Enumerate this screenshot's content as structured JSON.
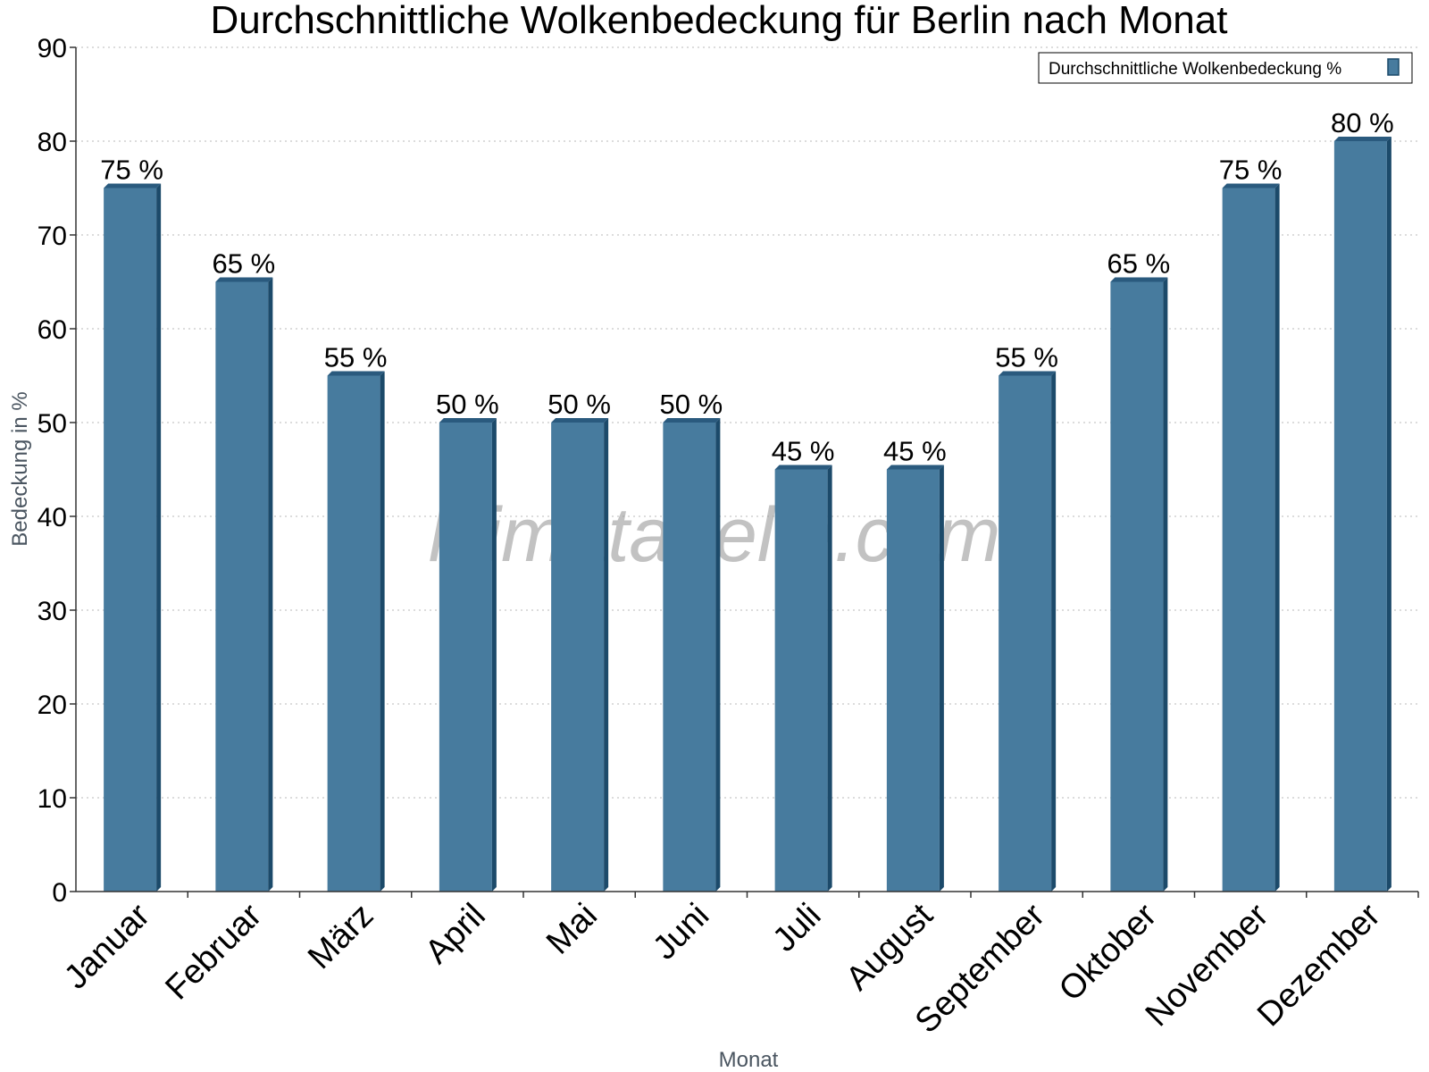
{
  "chart_data": {
    "type": "bar",
    "title": "Durchschnittliche Wolkenbedeckung für Berlin nach Monat",
    "xlabel": "Monat",
    "ylabel": "Bedeckung in %",
    "categories": [
      "Januar",
      "Februar",
      "März",
      "April",
      "Mai",
      "Juni",
      "Juli",
      "August",
      "September",
      "Oktober",
      "November",
      "Dezember"
    ],
    "series": [
      {
        "name": "Durchschnittliche Wolkenbedeckung %",
        "values": [
          75,
          65,
          55,
          50,
          50,
          50,
          45,
          45,
          55,
          65,
          75,
          80
        ],
        "labels": [
          "75 %",
          "65 %",
          "55 %",
          "50 %",
          "50 %",
          "50 %",
          "45 %",
          "45 %",
          "55 %",
          "65 %",
          "75 %",
          "80 %"
        ],
        "color": "#477b9e"
      }
    ],
    "ylim": [
      0,
      90
    ],
    "yticks": [
      "0",
      "10",
      "20",
      "30",
      "40",
      "50",
      "60",
      "70",
      "80",
      "90"
    ],
    "grid": true,
    "legend_position": "top-right",
    "watermark": "klimatabelle.com"
  },
  "colors": {
    "bar_face": "#477b9e",
    "bar_side": "#1c4a6a",
    "bar_top": "#2a5a7e"
  }
}
